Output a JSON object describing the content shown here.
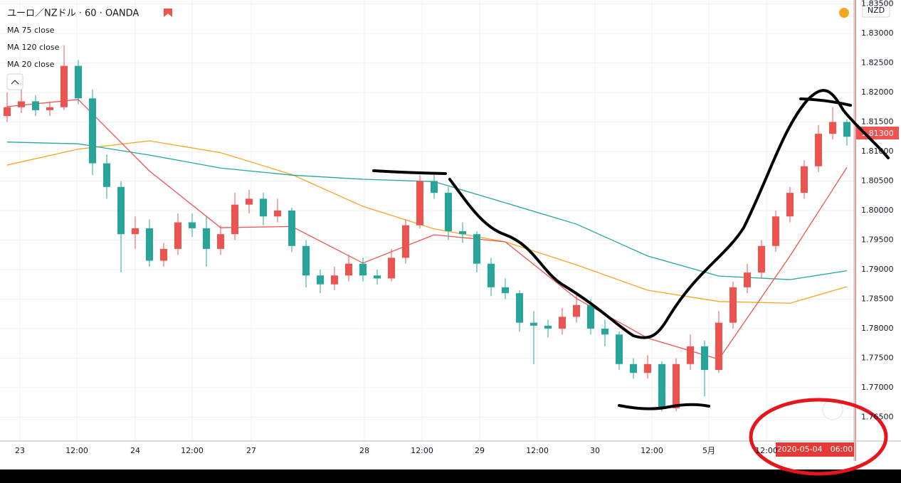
{
  "chart_data": {
    "type": "candlestick",
    "title": "ユーロ／NZドル · 60 · OANDA",
    "legend": [
      "MA 75 close",
      "MA 120 close",
      "MA 20 close"
    ],
    "currency": "NZD",
    "price_label": "1.81300",
    "crosshair_label": "2020-05-04　06:00",
    "up_color": "#ef5350",
    "down_color": "#26a69a",
    "grid": true,
    "ylim": [
      1.76096,
      1.83566
    ],
    "yticks": [
      {
        "value": 1.765,
        "label": "1.76500"
      },
      {
        "value": 1.77,
        "label": "1.77000"
      },
      {
        "value": 1.775,
        "label": "1.77500"
      },
      {
        "value": 1.78,
        "label": "1.78000"
      },
      {
        "value": 1.785,
        "label": "1.78500"
      },
      {
        "value": 1.79,
        "label": "1.79000"
      },
      {
        "value": 1.795,
        "label": "1.79500"
      },
      {
        "value": 1.8,
        "label": "1.80000"
      },
      {
        "value": 1.805,
        "label": "1.80500"
      },
      {
        "value": 1.81,
        "label": "1.81000"
      },
      {
        "value": 1.815,
        "label": "1.81500"
      },
      {
        "value": 1.82,
        "label": "1.82000"
      },
      {
        "value": 1.825,
        "label": "1.82500"
      },
      {
        "value": 1.83,
        "label": "1.83000"
      },
      {
        "value": 1.835,
        "label": "1.83500"
      }
    ],
    "xticks": [
      {
        "value": 0.9,
        "label": "23"
      },
      {
        "value": 4.9,
        "label": "12:00"
      },
      {
        "value": 9,
        "label": "24"
      },
      {
        "value": 13,
        "label": "12:00"
      },
      {
        "value": 17.15,
        "label": "27"
      },
      {
        "value": 25.1,
        "label": "28"
      },
      {
        "value": 29.15,
        "label": "12:00"
      },
      {
        "value": 33.2,
        "label": "29"
      },
      {
        "value": 37.25,
        "label": "12:00"
      },
      {
        "value": 41.3,
        "label": "30"
      },
      {
        "value": 45.3,
        "label": "12:00"
      },
      {
        "value": 49.3,
        "label": "5月"
      },
      {
        "value": 53.35,
        "label": "12:00"
      }
    ],
    "open": [
      1.816,
      1.8175,
      1.8185,
      1.817,
      1.8175,
      1.8245,
      1.819,
      1.808,
      1.804,
      1.796,
      1.797,
      1.7915,
      1.7935,
      1.798,
      1.797,
      1.7935,
      1.796,
      1.801,
      1.802,
      1.799,
      1.8,
      1.794,
      1.789,
      1.7875,
      1.789,
      1.791,
      1.789,
      1.7885,
      1.792,
      1.7975,
      1.805,
      1.803,
      1.7965,
      1.796,
      1.791,
      1.787,
      1.786,
      1.781,
      1.7805,
      1.78,
      1.782,
      1.784,
      1.78,
      1.779,
      1.774,
      1.7725,
      1.774,
      1.7665,
      1.774,
      1.777,
      1.773,
      1.781,
      1.787,
      1.7895,
      1.794,
      1.799,
      1.803,
      1.8075,
      1.813,
      1.815
    ],
    "high": [
      1.82,
      1.823,
      1.8195,
      1.8185,
      1.828,
      1.8255,
      1.8205,
      1.8095,
      1.805,
      1.799,
      1.7985,
      1.7945,
      1.7995,
      1.7995,
      1.799,
      1.7975,
      1.803,
      1.8035,
      1.803,
      1.802,
      1.8005,
      1.795,
      1.79,
      1.7905,
      1.7925,
      1.792,
      1.79,
      1.7935,
      1.7985,
      1.806,
      1.806,
      1.804,
      1.798,
      1.7965,
      1.792,
      1.7885,
      1.7865,
      1.783,
      1.7815,
      1.7835,
      1.786,
      1.785,
      1.7815,
      1.7795,
      1.775,
      1.7755,
      1.7745,
      1.775,
      1.779,
      1.778,
      1.783,
      1.788,
      1.791,
      1.795,
      1.8,
      1.804,
      1.8085,
      1.8145,
      1.8175,
      1.8155
    ],
    "low": [
      1.815,
      1.8165,
      1.816,
      1.816,
      1.817,
      1.818,
      1.806,
      1.802,
      1.7895,
      1.7935,
      1.7905,
      1.7905,
      1.7925,
      1.7955,
      1.7905,
      1.7925,
      1.795,
      1.7995,
      1.7975,
      1.798,
      1.793,
      1.787,
      1.786,
      1.7865,
      1.788,
      1.788,
      1.7875,
      1.788,
      1.791,
      1.797,
      1.802,
      1.795,
      1.7945,
      1.7895,
      1.7855,
      1.785,
      1.7795,
      1.774,
      1.7785,
      1.779,
      1.781,
      1.779,
      1.777,
      1.773,
      1.7715,
      1.7715,
      1.766,
      1.766,
      1.773,
      1.7685,
      1.7725,
      1.78,
      1.786,
      1.7885,
      1.793,
      1.798,
      1.802,
      1.8065,
      1.812,
      1.811
    ],
    "close": [
      1.8175,
      1.8185,
      1.817,
      1.8175,
      1.8245,
      1.819,
      1.808,
      1.804,
      1.796,
      1.797,
      1.7915,
      1.7935,
      1.798,
      1.797,
      1.7935,
      1.796,
      1.801,
      1.802,
      1.799,
      1.8,
      1.794,
      1.789,
      1.7875,
      1.789,
      1.791,
      1.789,
      1.7885,
      1.792,
      1.7975,
      1.805,
      1.803,
      1.7965,
      1.796,
      1.791,
      1.787,
      1.786,
      1.781,
      1.7805,
      1.78,
      1.782,
      1.784,
      1.78,
      1.779,
      1.774,
      1.7725,
      1.774,
      1.7665,
      1.774,
      1.777,
      1.773,
      1.781,
      1.787,
      1.7895,
      1.794,
      1.799,
      1.803,
      1.8075,
      1.813,
      1.815,
      1.8125
    ],
    "ma_x": [
      0,
      5,
      10,
      15,
      20,
      25,
      30,
      35,
      40,
      45,
      50,
      55,
      59
    ],
    "series": [
      {
        "name": "MA 75 close",
        "color": "#f5a623",
        "values": [
          1.8077,
          1.8104,
          1.8118,
          1.8098,
          1.8061,
          1.8007,
          1.7969,
          1.7947,
          1.7908,
          1.7865,
          1.7846,
          1.7843,
          1.7871
        ]
      },
      {
        "name": "MA 120 close",
        "color": "#26a69a",
        "values": [
          1.8116,
          1.8113,
          1.8094,
          1.8072,
          1.806,
          1.8053,
          1.8049,
          1.8013,
          1.7977,
          1.7923,
          1.7889,
          1.7883,
          1.7898
        ]
      },
      {
        "name": "MA 20 close",
        "color": "#ef5350",
        "values": [
          1.8176,
          1.8188,
          1.8067,
          1.7971,
          1.7973,
          1.7911,
          1.7959,
          1.7947,
          1.7851,
          1.7784,
          1.7748,
          1.7923,
          1.8073
        ]
      }
    ]
  }
}
